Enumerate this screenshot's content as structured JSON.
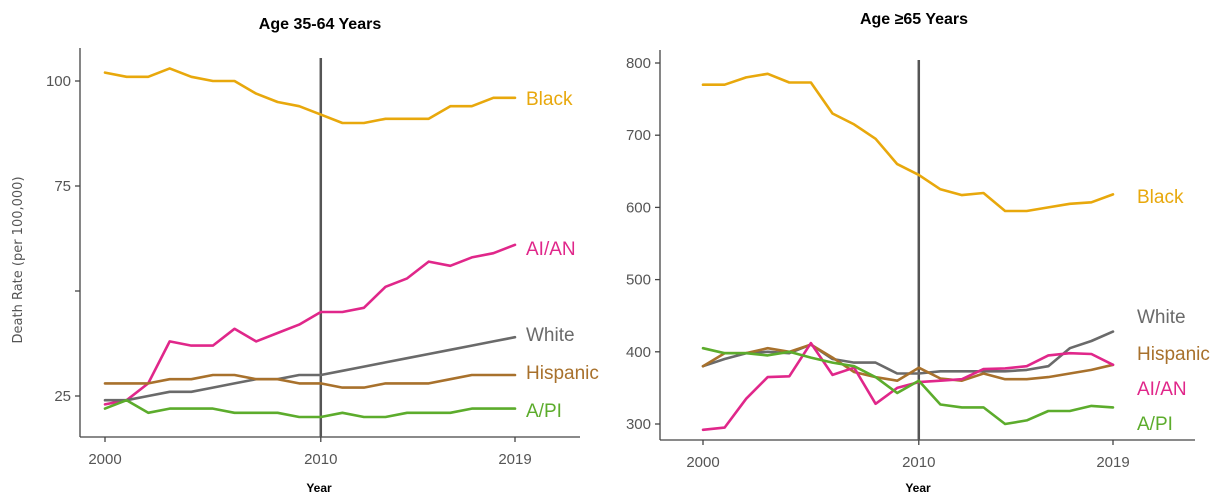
{
  "chart_data": [
    {
      "type": "line",
      "title": "Age 35-64 Years",
      "xlabel": "Year",
      "ylabel": "Death Rate (per 100,000)",
      "y_ticks": [
        {
          "value": 25,
          "label": "25"
        },
        {
          "value": 75,
          "label": "75"
        },
        {
          "value": 100,
          "label": "100"
        }
      ],
      "x_ticks": [
        {
          "value": 2000,
          "label": "2000"
        },
        {
          "value": 2010,
          "label": "2010"
        },
        {
          "value": 2019,
          "label": "2019"
        }
      ],
      "reference_year": 2010,
      "x": [
        2000,
        2001,
        2002,
        2003,
        2004,
        2005,
        2006,
        2007,
        2008,
        2009,
        2010,
        2011,
        2012,
        2013,
        2014,
        2015,
        2016,
        2017,
        2018,
        2019
      ],
      "series": [
        {
          "name": "Black",
          "color": "#E8A80C",
          "values": [
            102,
            101,
            101,
            103,
            101,
            100,
            100,
            97,
            95,
            94,
            92,
            90,
            90,
            91,
            91,
            91,
            94,
            94,
            96,
            96
          ]
        },
        {
          "name": "AI/AN",
          "color": "#E0278A",
          "values": [
            23,
            24,
            28,
            38,
            37,
            37,
            41,
            38,
            40,
            42,
            45,
            45,
            46,
            51,
            53,
            57,
            56,
            58,
            59,
            61
          ]
        },
        {
          "name": "White",
          "color": "#6A6A6A",
          "values": [
            24,
            24,
            25,
            26,
            26,
            27,
            28,
            29,
            29,
            30,
            30,
            31,
            32,
            33,
            34,
            35,
            36,
            37,
            38,
            39
          ]
        },
        {
          "name": "Hispanic",
          "color": "#A8712C",
          "values": [
            28,
            28,
            28,
            29,
            29,
            30,
            30,
            29,
            29,
            28,
            28,
            27,
            27,
            28,
            28,
            28,
            29,
            30,
            30,
            30
          ]
        },
        {
          "name": "A/PI",
          "color": "#5CAC2C",
          "values": [
            22,
            24,
            21,
            22,
            22,
            22,
            21,
            21,
            21,
            20,
            20,
            21,
            20,
            20,
            21,
            21,
            21,
            22,
            22,
            22
          ]
        }
      ]
    },
    {
      "type": "line",
      "title": "Age ≥65 Years",
      "xlabel": "Year",
      "ylabel": "",
      "y_ticks": [
        {
          "value": 300,
          "label": "300"
        },
        {
          "value": 400,
          "label": "400"
        },
        {
          "value": 500,
          "label": "500"
        },
        {
          "value": 600,
          "label": "600"
        },
        {
          "value": 700,
          "label": "700"
        },
        {
          "value": 800,
          "label": "800"
        }
      ],
      "x_ticks": [
        {
          "value": 2000,
          "label": "2000"
        },
        {
          "value": 2010,
          "label": "2010"
        },
        {
          "value": 2019,
          "label": "2019"
        }
      ],
      "reference_year": 2010,
      "x": [
        2000,
        2001,
        2002,
        2003,
        2004,
        2005,
        2006,
        2007,
        2008,
        2009,
        2010,
        2011,
        2012,
        2013,
        2014,
        2015,
        2016,
        2017,
        2018,
        2019
      ],
      "series": [
        {
          "name": "Black",
          "color": "#E8A80C",
          "values": [
            770,
            770,
            780,
            785,
            773,
            773,
            730,
            715,
            695,
            660,
            645,
            625,
            617,
            620,
            595,
            595,
            600,
            605,
            607,
            618
          ]
        },
        {
          "name": "White",
          "color": "#6A6A6A",
          "values": [
            380,
            390,
            398,
            400,
            398,
            410,
            390,
            385,
            385,
            370,
            370,
            373,
            373,
            373,
            373,
            375,
            380,
            405,
            415,
            428
          ]
        },
        {
          "name": "Hispanic",
          "color": "#A8712C",
          "values": [
            380,
            398,
            398,
            405,
            400,
            410,
            392,
            372,
            365,
            360,
            378,
            363,
            360,
            370,
            362,
            362,
            365,
            370,
            375,
            382
          ]
        },
        {
          "name": "AI/AN",
          "color": "#E0278A",
          "values": [
            292,
            295,
            335,
            365,
            366,
            412,
            368,
            378,
            328,
            350,
            358,
            360,
            362,
            376,
            377,
            380,
            395,
            398,
            397,
            382
          ]
        },
        {
          "name": "A/PI",
          "color": "#5CAC2C",
          "values": [
            405,
            398,
            398,
            395,
            400,
            392,
            385,
            380,
            365,
            343,
            360,
            327,
            323,
            323,
            300,
            305,
            318,
            318,
            325,
            323
          ]
        }
      ]
    }
  ]
}
